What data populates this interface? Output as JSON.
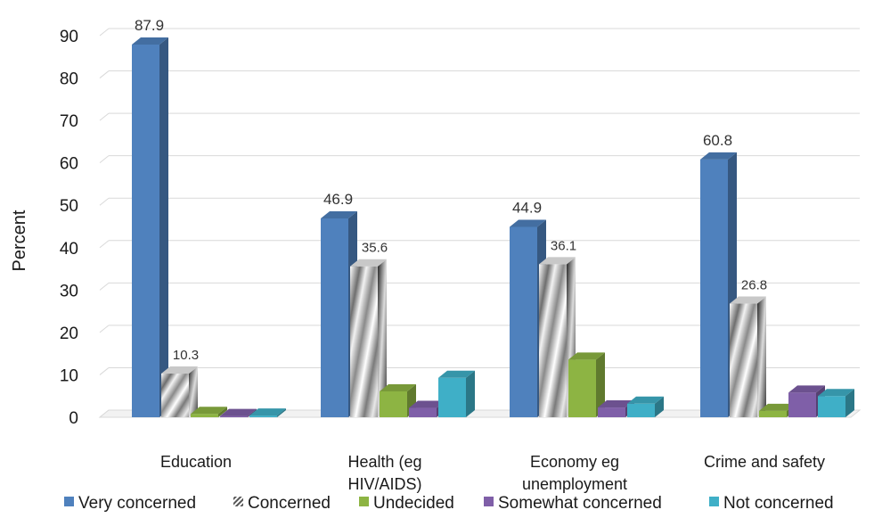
{
  "chart_data": {
    "type": "bar",
    "title": "",
    "ylabel": "Percent",
    "xlabel": "",
    "ylim": [
      0,
      90
    ],
    "yticks": [
      0,
      10,
      20,
      30,
      40,
      50,
      60,
      70,
      80,
      90
    ],
    "grid": true,
    "legend_position": "bottom",
    "categories": [
      [
        "Education"
      ],
      [
        "Health (eg",
        "HIV/AIDS)"
      ],
      [
        "Economy eg",
        "unemployment"
      ],
      [
        "Crime and safety"
      ]
    ],
    "series": [
      {
        "name": "Very concerned",
        "color": "#4F81BD",
        "pattern": "solid",
        "values": [
          87.9,
          46.9,
          44.9,
          60.8
        ]
      },
      {
        "name": "Concerned",
        "color": "#BFBFBF",
        "pattern": "diagonal",
        "values": [
          10.3,
          35.6,
          36.1,
          26.8
        ]
      },
      {
        "name": "Undecided",
        "color": "#8DB443",
        "pattern": "solid",
        "values": [
          0.8,
          6.1,
          13.6,
          1.5
        ]
      },
      {
        "name": "Somewhat concerned",
        "color": "#7F5FA8",
        "pattern": "solid",
        "values": [
          0.3,
          2.2,
          2.3,
          5.8
        ]
      },
      {
        "name": "Not concerned",
        "color": "#3FAFC7",
        "pattern": "solid",
        "values": [
          0.4,
          9.3,
          3.2,
          5.0
        ]
      }
    ],
    "data_labels": [
      {
        "series": 0,
        "category": 0,
        "text": "87.9"
      },
      {
        "series": 1,
        "category": 0,
        "text": "10.3"
      },
      {
        "series": 0,
        "category": 1,
        "text": "46.9"
      },
      {
        "series": 1,
        "category": 1,
        "text": "35.6"
      },
      {
        "series": 0,
        "category": 2,
        "text": "44.9"
      },
      {
        "series": 1,
        "category": 2,
        "text": "36.1"
      },
      {
        "series": 0,
        "category": 3,
        "text": "60.8"
      },
      {
        "series": 1,
        "category": 3,
        "text": "26.8"
      }
    ]
  }
}
